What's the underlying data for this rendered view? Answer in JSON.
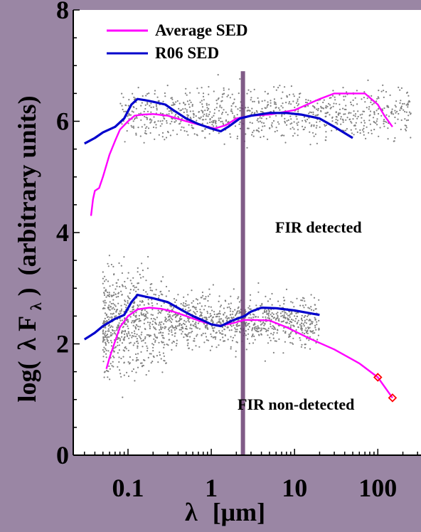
{
  "chart_data": {
    "type": "line",
    "xscale": "log",
    "xlim": [
      0.022,
      330
    ],
    "ylim": [
      0,
      8
    ],
    "xlabel": {
      "prefix": "λ",
      "unit": "[μm]"
    },
    "ylabel": {
      "prefix": "log(",
      "sym": "λ F",
      "sub": "λ",
      "suffix": ")",
      "rest": "(arbitrary units)"
    },
    "x_ticks": [
      {
        "value": 0.1,
        "label": "0.1"
      },
      {
        "value": 1,
        "label": "1"
      },
      {
        "value": 10,
        "label": "10"
      },
      {
        "value": 100,
        "label": "100"
      }
    ],
    "y_ticks": [
      {
        "value": 0,
        "label": "0"
      },
      {
        "value": 2,
        "label": "2"
      },
      {
        "value": 4,
        "label": "4"
      },
      {
        "value": 6,
        "label": "6"
      },
      {
        "value": 8,
        "label": "8"
      }
    ],
    "vertical_line": {
      "x": 2.4,
      "color": "#6b3f73"
    },
    "legend": [
      {
        "name": "Average SED",
        "color": "#ff00ff"
      },
      {
        "name": "R06 SED",
        "color": "#0000cc"
      }
    ],
    "annotations": [
      {
        "text": "FIR detected",
        "x": 12,
        "y": 4.1
      },
      {
        "text": "FIR non-detected",
        "x": 11,
        "y": 0.75
      }
    ],
    "series": [
      {
        "name": "Average SED",
        "group": "FIR detected",
        "color": "#ff00ff",
        "points": [
          [
            0.036,
            4.3
          ],
          [
            0.038,
            4.6
          ],
          [
            0.04,
            4.75
          ],
          [
            0.045,
            4.8
          ],
          [
            0.05,
            5.0
          ],
          [
            0.06,
            5.4
          ],
          [
            0.07,
            5.65
          ],
          [
            0.08,
            5.85
          ],
          [
            0.1,
            6.0
          ],
          [
            0.12,
            6.1
          ],
          [
            0.15,
            6.12
          ],
          [
            0.2,
            6.13
          ],
          [
            0.3,
            6.1
          ],
          [
            0.5,
            6.0
          ],
          [
            0.8,
            5.92
          ],
          [
            1.1,
            5.87
          ],
          [
            1.5,
            5.93
          ],
          [
            2,
            6.05
          ],
          [
            3,
            6.1
          ],
          [
            5,
            6.12
          ],
          [
            10,
            6.2
          ],
          [
            20,
            6.4
          ],
          [
            30,
            6.5
          ],
          [
            50,
            6.5
          ],
          [
            70,
            6.5
          ],
          [
            100,
            6.3
          ],
          [
            120,
            6.1
          ],
          [
            150,
            5.9
          ]
        ]
      },
      {
        "name": "R06 SED",
        "group": "FIR detected",
        "color": "#0000cc",
        "points": [
          [
            0.03,
            5.6
          ],
          [
            0.04,
            5.7
          ],
          [
            0.05,
            5.8
          ],
          [
            0.07,
            5.9
          ],
          [
            0.09,
            6.05
          ],
          [
            0.11,
            6.3
          ],
          [
            0.13,
            6.4
          ],
          [
            0.16,
            6.38
          ],
          [
            0.2,
            6.35
          ],
          [
            0.28,
            6.3
          ],
          [
            0.35,
            6.2
          ],
          [
            0.5,
            6.05
          ],
          [
            0.7,
            5.95
          ],
          [
            1.0,
            5.87
          ],
          [
            1.3,
            5.82
          ],
          [
            1.6,
            5.9
          ],
          [
            2.2,
            6.05
          ],
          [
            3,
            6.1
          ],
          [
            5,
            6.15
          ],
          [
            8,
            6.15
          ],
          [
            12,
            6.12
          ],
          [
            20,
            6.05
          ],
          [
            30,
            5.9
          ],
          [
            50,
            5.7
          ]
        ]
      },
      {
        "name": "Average SED",
        "group": "FIR non-detected",
        "color": "#ff00ff",
        "points": [
          [
            0.055,
            1.55
          ],
          [
            0.06,
            1.75
          ],
          [
            0.07,
            2.05
          ],
          [
            0.08,
            2.3
          ],
          [
            0.1,
            2.5
          ],
          [
            0.13,
            2.62
          ],
          [
            0.18,
            2.65
          ],
          [
            0.25,
            2.63
          ],
          [
            0.35,
            2.58
          ],
          [
            0.5,
            2.5
          ],
          [
            0.7,
            2.42
          ],
          [
            1.0,
            2.35
          ],
          [
            1.3,
            2.33
          ],
          [
            1.8,
            2.37
          ],
          [
            2.5,
            2.43
          ],
          [
            3.5,
            2.43
          ],
          [
            5,
            2.42
          ],
          [
            8,
            2.3
          ],
          [
            15,
            2.1
          ],
          [
            30,
            1.9
          ],
          [
            60,
            1.65
          ],
          [
            100,
            1.4
          ],
          [
            150,
            1.03
          ]
        ]
      },
      {
        "name": "R06 SED",
        "group": "FIR non-detected",
        "color": "#0000cc",
        "points": [
          [
            0.03,
            2.08
          ],
          [
            0.04,
            2.2
          ],
          [
            0.05,
            2.32
          ],
          [
            0.07,
            2.45
          ],
          [
            0.09,
            2.52
          ],
          [
            0.11,
            2.75
          ],
          [
            0.13,
            2.88
          ],
          [
            0.16,
            2.85
          ],
          [
            0.2,
            2.82
          ],
          [
            0.3,
            2.75
          ],
          [
            0.45,
            2.6
          ],
          [
            0.6,
            2.5
          ],
          [
            0.8,
            2.42
          ],
          [
            1.0,
            2.35
          ],
          [
            1.3,
            2.32
          ],
          [
            1.8,
            2.42
          ],
          [
            2.5,
            2.5
          ],
          [
            3,
            2.58
          ],
          [
            4,
            2.65
          ],
          [
            6,
            2.64
          ],
          [
            10,
            2.6
          ],
          [
            20,
            2.52
          ]
        ]
      }
    ],
    "markers": [
      {
        "series": "Average SED",
        "shape": "diamond",
        "color": "#ff0000",
        "points": [
          [
            100,
            1.4
          ],
          [
            150,
            1.03
          ]
        ]
      }
    ],
    "scatter_groups": [
      {
        "group": "FIR detected",
        "color": "#808080",
        "x_range": [
          0.08,
          250
        ],
        "y_center": 6.15
      },
      {
        "group": "FIR non-detected",
        "color": "#808080",
        "x_range": [
          0.05,
          20
        ],
        "y_center": 2.4
      }
    ]
  }
}
